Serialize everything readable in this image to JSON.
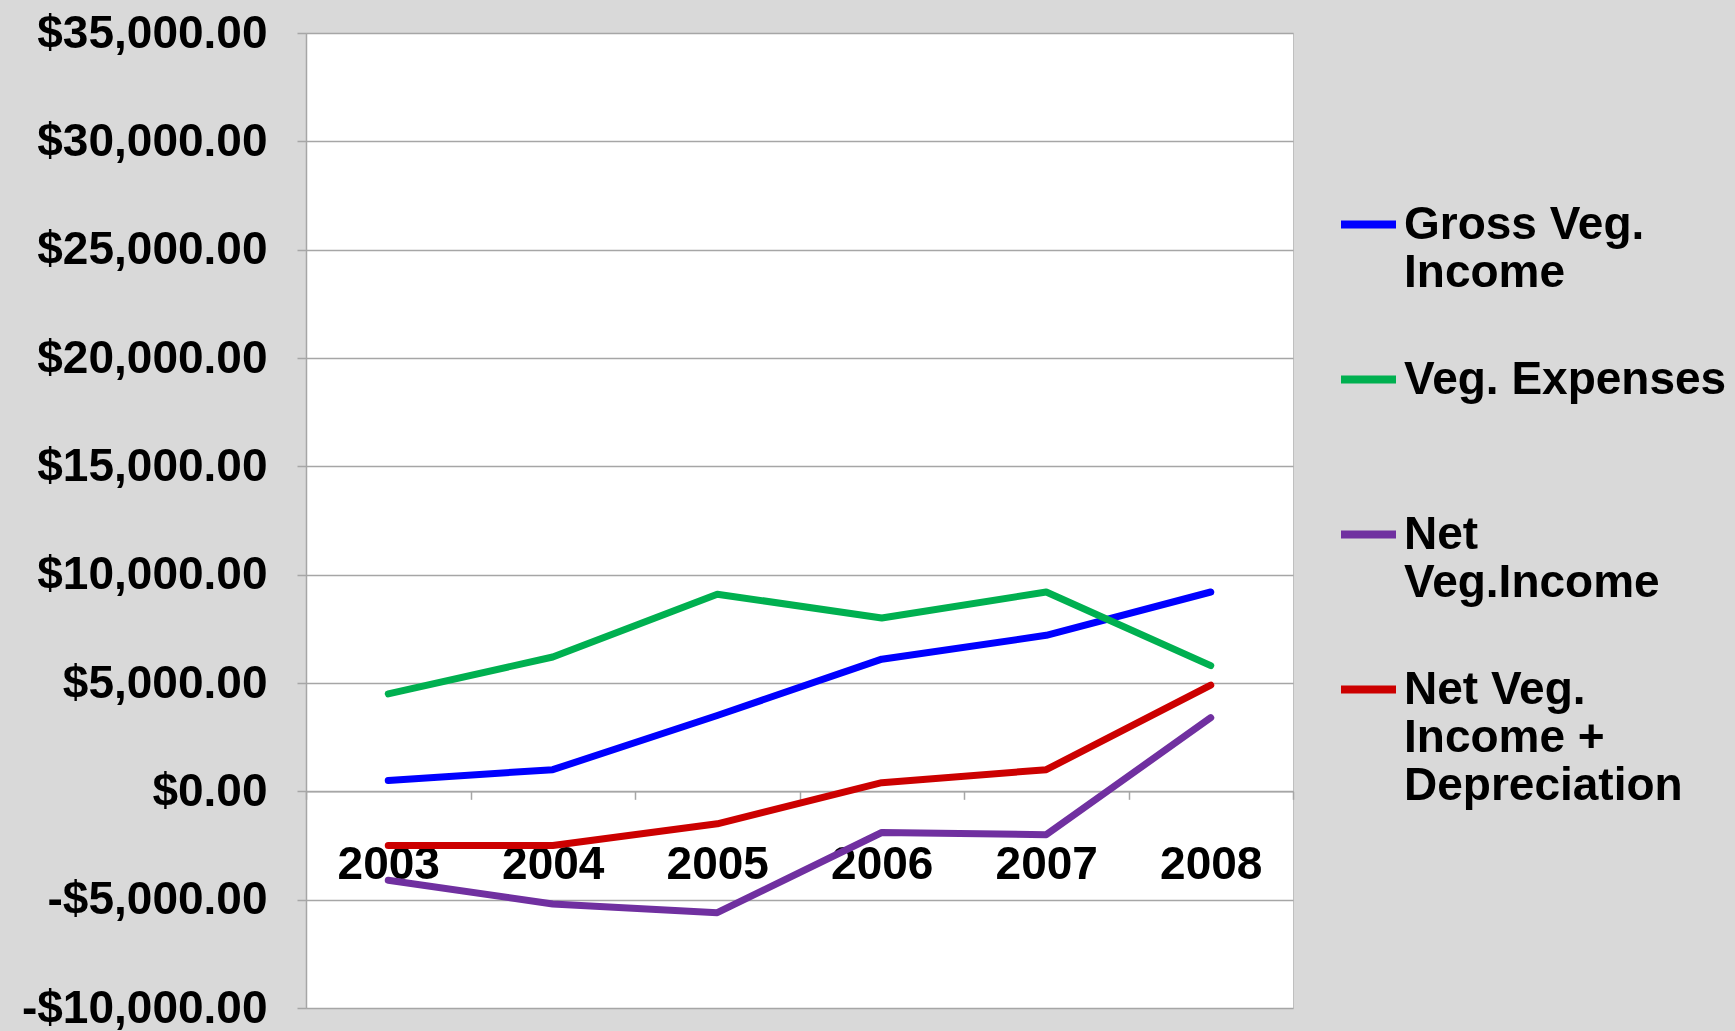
{
  "chart_data": {
    "type": "line",
    "categories": [
      "2003",
      "2004",
      "2005",
      "2006",
      "2007",
      "2008"
    ],
    "series": [
      {
        "name": "Gross Veg. Income",
        "color": "#0000ff",
        "values": [
          500,
          1000,
          3500,
          6100,
          7200,
          9200
        ]
      },
      {
        "name": "Veg. Expenses",
        "color": "#00b050",
        "values": [
          4500,
          6200,
          9100,
          8000,
          9200,
          5800
        ]
      },
      {
        "name": "Net Veg.Income",
        "color": "#7030a0",
        "values": [
          -4100,
          -5200,
          -5600,
          -1900,
          -2000,
          3400
        ]
      },
      {
        "name": "Net Veg. Income + Depreciation",
        "color": "#cc0000",
        "values": [
          -2500,
          -2500,
          -1500,
          400,
          1000,
          4900
        ]
      }
    ],
    "ylim": [
      -10000,
      35000
    ],
    "yticks": [
      {
        "value": -10000,
        "label": "-$10,000.00"
      },
      {
        "value": -5000,
        "label": "-$5,000.00"
      },
      {
        "value": 0,
        "label": "$0.00"
      },
      {
        "value": 5000,
        "label": "$5,000.00"
      },
      {
        "value": 10000,
        "label": "$10,000.00"
      },
      {
        "value": 15000,
        "label": "$15,000.00"
      },
      {
        "value": 20000,
        "label": "$20,000.00"
      },
      {
        "value": 25000,
        "label": "$25,000.00"
      },
      {
        "value": 30000,
        "label": "$30,000.00"
      },
      {
        "value": 35000,
        "label": "$35,000.00"
      }
    ],
    "grid": "y",
    "legend": "right"
  }
}
